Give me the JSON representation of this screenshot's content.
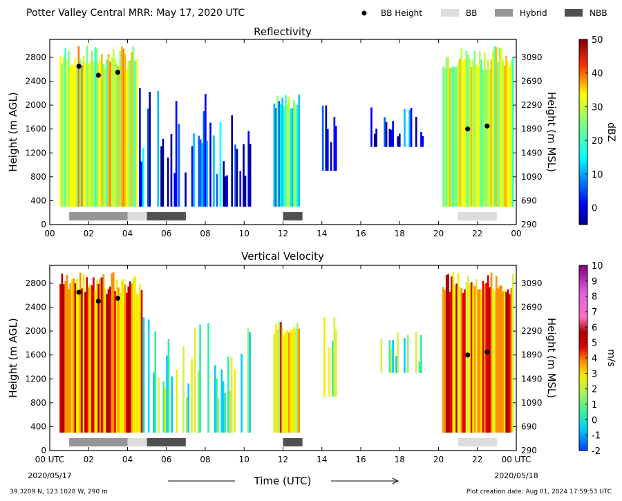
{
  "header": {
    "title": "Potter Valley Central MRR:  May 17, 2020 UTC",
    "legend": [
      {
        "label": "BB Height",
        "kind": "dot",
        "color": "#000000"
      },
      {
        "label": "BB",
        "kind": "swatch",
        "color": "#dcdcdc"
      },
      {
        "label": "Hybrid",
        "kind": "swatch",
        "color": "#969696"
      },
      {
        "label": "NBB",
        "kind": "swatch",
        "color": "#505050"
      }
    ]
  },
  "colors": {
    "bb": "#dcdcdc",
    "hybrid": "#969696",
    "nbb": "#505050"
  },
  "footer": {
    "location": "39.3209 N, 123.1028 W, 290 m",
    "created": "Plot creation date: Aug 01, 2024 17:59:53 UTC",
    "xlabel": "Time (UTC)",
    "start_date": "2020/05/17",
    "end_date": "2020/05/18",
    "start_tick": "00 UTC",
    "end_tick": "00 UTC"
  },
  "chart_data": [
    {
      "type": "heatmap",
      "title": "Reflectivity",
      "ylabel": "Height (m AGL)",
      "ylabel_right": "Height (m MSL)",
      "xlim": [
        0,
        24
      ],
      "ylim": [
        0,
        3100
      ],
      "x_ticks": [
        "00",
        "02",
        "04",
        "06",
        "08",
        "10",
        "12",
        "14",
        "16",
        "18",
        "20",
        "22",
        "00"
      ],
      "y_ticks": [
        0,
        400,
        800,
        1200,
        1600,
        2000,
        2400,
        2800
      ],
      "y_ticks_right": [
        290,
        690,
        1090,
        1490,
        1890,
        2290,
        2690,
        3090
      ],
      "colorbar": {
        "label": "dBZ",
        "range": [
          -5,
          50
        ],
        "ticks": [
          0,
          10,
          20,
          30,
          40,
          50
        ],
        "colormap": "jet"
      },
      "bb_height": [
        {
          "time": 1.5,
          "height": 2650
        },
        {
          "time": 2.5,
          "height": 2500
        },
        {
          "time": 3.5,
          "height": 2550
        },
        {
          "time": 21.5,
          "height": 1600
        },
        {
          "time": 22.5,
          "height": 1650
        }
      ],
      "bb_type_bars": [
        {
          "start": 1.0,
          "end": 4.0,
          "type": "Hybrid"
        },
        {
          "start": 4.0,
          "end": 5.0,
          "type": "BB"
        },
        {
          "start": 5.0,
          "end": 7.0,
          "type": "NBB"
        },
        {
          "start": 12.0,
          "end": 13.0,
          "type": "NBB"
        },
        {
          "start": 21.0,
          "end": 23.0,
          "type": "BB"
        }
      ],
      "echo_columns": [
        {
          "start": 0.5,
          "end": 4.5,
          "top": 3000,
          "bottom": 300,
          "level": 0.62
        },
        {
          "start": 4.5,
          "end": 6.6,
          "top": 2500,
          "bottom": 300,
          "level": 0.15
        },
        {
          "start": 6.6,
          "end": 10.3,
          "top": 2200,
          "bottom": 300,
          "level": 0.12
        },
        {
          "start": 11.5,
          "end": 12.8,
          "top": 2200,
          "bottom": 300,
          "level": 0.4
        },
        {
          "start": 14.0,
          "end": 15.0,
          "top": 2300,
          "bottom": 900,
          "level": 0.05
        },
        {
          "start": 16.5,
          "end": 19.2,
          "top": 2000,
          "bottom": 1300,
          "level": 0.05
        },
        {
          "start": 20.2,
          "end": 23.8,
          "top": 3000,
          "bottom": 300,
          "level": 0.58
        }
      ]
    },
    {
      "type": "heatmap",
      "title": "Vertical Velocity",
      "ylabel": "Height (m AGL)",
      "ylabel_right": "Height (m MSL)",
      "xlim": [
        0,
        24
      ],
      "ylim": [
        0,
        3100
      ],
      "x_ticks": [
        "00 UTC",
        "02",
        "04",
        "06",
        "08",
        "10",
        "12",
        "14",
        "16",
        "18",
        "20",
        "22",
        "00 UTC"
      ],
      "y_ticks": [
        0,
        400,
        800,
        1200,
        1600,
        2000,
        2400,
        2800
      ],
      "y_ticks_right": [
        290,
        690,
        1090,
        1490,
        1890,
        2290,
        2690,
        3090
      ],
      "colorbar": {
        "label": "m/s",
        "range": [
          -2,
          10
        ],
        "ticks": [
          -2,
          -1,
          0,
          1,
          2,
          3,
          4,
          5,
          6,
          7,
          8,
          9,
          10
        ],
        "colormap": "velocity"
      },
      "bb_height": [
        {
          "time": 1.5,
          "height": 2650
        },
        {
          "time": 2.5,
          "height": 2500
        },
        {
          "time": 3.5,
          "height": 2550
        },
        {
          "time": 21.5,
          "height": 1600
        },
        {
          "time": 22.5,
          "height": 1650
        }
      ],
      "bb_type_bars": [
        {
          "start": 1.0,
          "end": 4.0,
          "type": "Hybrid"
        },
        {
          "start": 4.0,
          "end": 5.0,
          "type": "BB"
        },
        {
          "start": 5.0,
          "end": 7.0,
          "type": "NBB"
        },
        {
          "start": 12.0,
          "end": 13.0,
          "type": "NBB"
        },
        {
          "start": 21.0,
          "end": 23.0,
          "type": "BB"
        }
      ],
      "echo_columns": [
        {
          "start": 0.5,
          "end": 4.7,
          "top": 3000,
          "bottom": 300,
          "level": 0.6
        },
        {
          "start": 4.7,
          "end": 10.3,
          "top": 2400,
          "bottom": 300,
          "level": 0.22
        },
        {
          "start": 11.5,
          "end": 12.8,
          "top": 2200,
          "bottom": 300,
          "level": 0.45
        },
        {
          "start": 14.0,
          "end": 15.0,
          "top": 2300,
          "bottom": 900,
          "level": 0.25
        },
        {
          "start": 16.5,
          "end": 19.2,
          "top": 2000,
          "bottom": 1300,
          "level": 0.22
        },
        {
          "start": 20.2,
          "end": 23.8,
          "top": 3000,
          "bottom": 300,
          "level": 0.55
        }
      ]
    }
  ]
}
